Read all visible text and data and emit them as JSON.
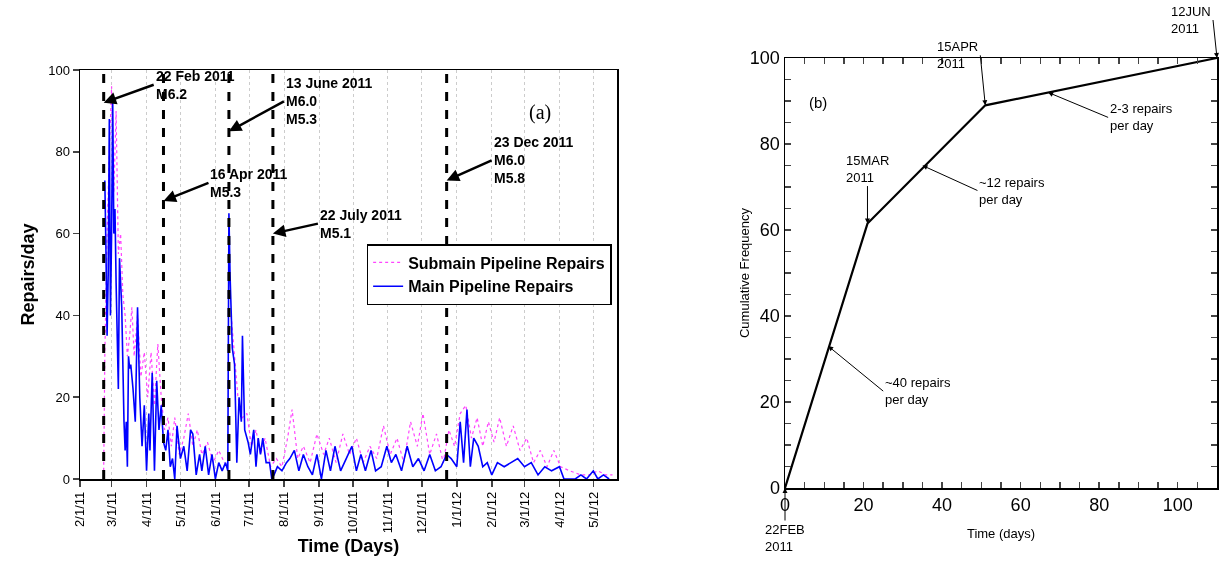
{
  "chart_data": [
    {
      "type": "line",
      "xlabel": "Time (Days)",
      "ylabel": "Repairs/day",
      "xlim": [
        "2011-02-01",
        "2012-05-22"
      ],
      "ylim": [
        0,
        100
      ],
      "yticks": [
        0,
        20,
        40,
        60,
        80,
        100
      ],
      "xticks": [
        {
          "value": "2011-02-01",
          "label": "2/1/11"
        },
        {
          "value": "2011-03-01",
          "label": "3/1/11"
        },
        {
          "value": "2011-04-01",
          "label": "4/1/11"
        },
        {
          "value": "2011-05-01",
          "label": "5/1/11"
        },
        {
          "value": "2011-06-01",
          "label": "6/1/11"
        },
        {
          "value": "2011-07-01",
          "label": "7/1/11"
        },
        {
          "value": "2011-08-01",
          "label": "8/1/11"
        },
        {
          "value": "2011-09-01",
          "label": "9/1/11"
        },
        {
          "value": "2011-10-01",
          "label": "10/1/11"
        },
        {
          "value": "2011-11-01",
          "label": "11/1/11"
        },
        {
          "value": "2011-12-01",
          "label": "12/1/11"
        },
        {
          "value": "2012-01-01",
          "label": "1/1/12"
        },
        {
          "value": "2012-02-01",
          "label": "2/1/12"
        },
        {
          "value": "2012-03-01",
          "label": "3/1/12"
        },
        {
          "value": "2012-04-01",
          "label": "4/1/12"
        },
        {
          "value": "2012-05-01",
          "label": "5/1/12"
        }
      ],
      "grid": "x",
      "legend": "right",
      "marker": "none",
      "series": [
        {
          "name": "Submain Pipeline Repairs",
          "color": "#ff44ff",
          "line_style": "dotted",
          "x": [
            "2011-02-22",
            "2011-02-23",
            "2011-02-25",
            "2011-02-27",
            "2011-03-01",
            "2011-03-03",
            "2011-03-05",
            "2011-03-07",
            "2011-03-09",
            "2011-03-11",
            "2011-03-13",
            "2011-03-15",
            "2011-03-17",
            "2011-03-19",
            "2011-03-21",
            "2011-03-24",
            "2011-03-27",
            "2011-03-30",
            "2011-04-02",
            "2011-04-05",
            "2011-04-08",
            "2011-04-11",
            "2011-04-14",
            "2011-04-17",
            "2011-04-20",
            "2011-04-23",
            "2011-04-26",
            "2011-04-30",
            "2011-05-04",
            "2011-05-08",
            "2011-05-12",
            "2011-05-16",
            "2011-05-20",
            "2011-05-25",
            "2011-05-30",
            "2011-06-04",
            "2011-06-09",
            "2011-06-13",
            "2011-06-15",
            "2011-06-18",
            "2011-06-21",
            "2011-06-25",
            "2011-06-29",
            "2011-07-03",
            "2011-07-07",
            "2011-07-11",
            "2011-07-15",
            "2011-07-20",
            "2011-07-25",
            "2011-07-30",
            "2011-08-04",
            "2011-08-08",
            "2011-08-13",
            "2011-08-18",
            "2011-08-24",
            "2011-08-30",
            "2011-09-05",
            "2011-09-10",
            "2011-09-16",
            "2011-09-22",
            "2011-09-28",
            "2011-10-04",
            "2011-10-10",
            "2011-10-16",
            "2011-10-22",
            "2011-10-28",
            "2011-11-03",
            "2011-11-09",
            "2011-11-15",
            "2011-11-21",
            "2011-11-27",
            "2011-12-02",
            "2011-12-08",
            "2011-12-14",
            "2011-12-20",
            "2011-12-25",
            "2011-12-30",
            "2012-01-04",
            "2012-01-09",
            "2012-01-14",
            "2012-01-19",
            "2012-01-24",
            "2012-01-29",
            "2012-02-03",
            "2012-02-08",
            "2012-02-14",
            "2012-02-20",
            "2012-02-26",
            "2012-03-03",
            "2012-03-09",
            "2012-03-15",
            "2012-03-21",
            "2012-03-27",
            "2012-04-02",
            "2012-04-10",
            "2012-04-20",
            "2012-04-28",
            "2012-05-05",
            "2012-05-12",
            "2012-05-18"
          ],
          "values": [
            2,
            30,
            60,
            80,
            96,
            70,
            90,
            55,
            60,
            45,
            40,
            30,
            35,
            42,
            30,
            40,
            25,
            31,
            20,
            31,
            18,
            33,
            20,
            12,
            15,
            8,
            15,
            6,
            10,
            16,
            8,
            12,
            6,
            9,
            4,
            7,
            4,
            null,
            40,
            30,
            20,
            15,
            16,
            8,
            12,
            6,
            10,
            3,
            5,
            3,
            10,
            17,
            5,
            8,
            4,
            11,
            6,
            10,
            4,
            11,
            6,
            10,
            4,
            8,
            5,
            13,
            6,
            10,
            4,
            14,
            8,
            16,
            6,
            11,
            4,
            12,
            8,
            16,
            18,
            10,
            15,
            8,
            14,
            9,
            15,
            8,
            13,
            7,
            10,
            4,
            7,
            3,
            7,
            3,
            2,
            1,
            1,
            2,
            1,
            1
          ]
        },
        {
          "name": "Main Pipeline Repairs",
          "color": "#0000ff",
          "line_style": "solid",
          "x": [
            "2011-02-23",
            "2011-02-24",
            "2011-02-25",
            "2011-02-26",
            "2011-02-27",
            "2011-02-28",
            "2011-03-01",
            "2011-03-02",
            "2011-03-03",
            "2011-03-04",
            "2011-03-05",
            "2011-03-07",
            "2011-03-08",
            "2011-03-10",
            "2011-03-12",
            "2011-03-13",
            "2011-03-14",
            "2011-03-15",
            "2011-03-16",
            "2011-03-17",
            "2011-03-18",
            "2011-03-20",
            "2011-03-22",
            "2011-03-24",
            "2011-03-26",
            "2011-03-28",
            "2011-03-30",
            "2011-04-01",
            "2011-04-03",
            "2011-04-04",
            "2011-04-06",
            "2011-04-08",
            "2011-04-10",
            "2011-04-12",
            "2011-04-14",
            "2011-04-16",
            "2011-04-18",
            "2011-04-20",
            "2011-04-22",
            "2011-04-24",
            "2011-04-26",
            "2011-04-28",
            "2011-05-01",
            "2011-05-04",
            "2011-05-07",
            "2011-05-10",
            "2011-05-12",
            "2011-05-15",
            "2011-05-18",
            "2011-05-20",
            "2011-05-23",
            "2011-05-26",
            "2011-05-29",
            "2011-06-01",
            "2011-06-04",
            "2011-06-07",
            "2011-06-10",
            "2011-06-12",
            "2011-06-13",
            "2011-06-14",
            "2011-06-16",
            "2011-06-18",
            "2011-06-20",
            "2011-06-22",
            "2011-06-24",
            "2011-06-25",
            "2011-06-27",
            "2011-06-30",
            "2011-07-02",
            "2011-07-05",
            "2011-07-07",
            "2011-07-09",
            "2011-07-11",
            "2011-07-13",
            "2011-07-16",
            "2011-07-19",
            "2011-07-21",
            "2011-07-23",
            "2011-07-26",
            "2011-07-30",
            "2011-08-03",
            "2011-08-06",
            "2011-08-10",
            "2011-08-14",
            "2011-08-18",
            "2011-08-22",
            "2011-08-26",
            "2011-08-30",
            "2011-09-03",
            "2011-09-07",
            "2011-09-11",
            "2011-09-15",
            "2011-09-20",
            "2011-09-25",
            "2011-09-30",
            "2011-10-04",
            "2011-10-08",
            "2011-10-12",
            "2011-10-17",
            "2011-10-21",
            "2011-10-26",
            "2011-10-31",
            "2011-11-04",
            "2011-11-08",
            "2011-11-13",
            "2011-11-18",
            "2011-11-23",
            "2011-11-28",
            "2011-12-03",
            "2011-12-08",
            "2011-12-13",
            "2011-12-18",
            "2011-12-23",
            "2011-12-27",
            "2012-01-01",
            "2012-01-04",
            "2012-01-07",
            "2012-01-10",
            "2012-01-13",
            "2012-01-16",
            "2012-01-20",
            "2012-01-24",
            "2012-01-28",
            "2012-02-01",
            "2012-02-06",
            "2012-02-12",
            "2012-02-18",
            "2012-02-24",
            "2012-03-01",
            "2012-03-07",
            "2012-03-13",
            "2012-03-19",
            "2012-03-25",
            "2012-04-01",
            "2012-04-05",
            "2012-04-15",
            "2012-04-20",
            "2012-04-25",
            "2012-05-01",
            "2012-05-05",
            "2012-05-10",
            "2012-05-15"
          ],
          "values": [
            73,
            56,
            35,
            50,
            88,
            40,
            60,
            92,
            60,
            66,
            48,
            22,
            54,
            42,
            14,
            7,
            14,
            3,
            30,
            27,
            28,
            22,
            14,
            42,
            20,
            8,
            18,
            2,
            16,
            7,
            26,
            2,
            24,
            12,
            18,
            9,
            7,
            12,
            3,
            5,
            0,
            13,
            5,
            8,
            2,
            12,
            11,
            1,
            6,
            2,
            8,
            1,
            6,
            0,
            4,
            2,
            4,
            2,
            65,
            50,
            32,
            28,
            4,
            20,
            14,
            35,
            12,
            9,
            6,
            12,
            3,
            10,
            6,
            10,
            4,
            4,
            0,
            1,
            3,
            2,
            4,
            5,
            7,
            2,
            6,
            3,
            1,
            6,
            0,
            7,
            2,
            8,
            2,
            5,
            8,
            2,
            6,
            2,
            7,
            2,
            3,
            8,
            4,
            6,
            2,
            8,
            3,
            5,
            2,
            6,
            2,
            3,
            6,
            5,
            3,
            14,
            4,
            17,
            3,
            10,
            8,
            3,
            4,
            1,
            4,
            3,
            4,
            5,
            3,
            4,
            1,
            3,
            2,
            3,
            0,
            0,
            1,
            0,
            2,
            0,
            1,
            0
          ]
        }
      ],
      "ref_lines": [
        {
          "axis": "x",
          "value": "2011-02-22",
          "color": "#000000",
          "line_style": "dashed"
        },
        {
          "axis": "x",
          "value": "2011-04-16",
          "color": "#000000",
          "line_style": "dashed"
        },
        {
          "axis": "x",
          "value": "2011-06-13",
          "color": "#000000",
          "line_style": "dashed"
        },
        {
          "axis": "x",
          "value": "2011-07-22",
          "color": "#000000",
          "line_style": "dashed"
        },
        {
          "axis": "x",
          "value": "2011-12-23",
          "color": "#000000",
          "line_style": "dashed"
        }
      ],
      "annotations": [
        {
          "text": "22 Feb 2011\nM6.2",
          "x": "2011-02-22",
          "y": 92
        },
        {
          "text": "16 Apr 2011\nM5.3",
          "x": "2011-04-16",
          "y": 68
        },
        {
          "text": "13 June 2011\nM6.0\nM5.3",
          "x": "2011-06-13",
          "y": 85
        },
        {
          "text": "22 July 2011\nM5.1",
          "x": "2011-07-22",
          "y": 60
        },
        {
          "text": "23 Dec 2011\nM6.0\nM5.8",
          "x": "2011-12-23",
          "y": 73
        },
        "(a)"
      ]
    },
    {
      "type": "line",
      "xlabel": "Time (days)",
      "ylabel": "Cumulative Frequency",
      "xlim": [
        0,
        110
      ],
      "ylim": [
        0,
        100
      ],
      "marker": "none",
      "line_style": "solid",
      "xticks": [
        0,
        {
          "value": 5,
          "label": null
        },
        {
          "value": 10,
          "label": null
        },
        {
          "value": 15,
          "label": null
        },
        20,
        {
          "value": 25,
          "label": null
        },
        {
          "value": 30,
          "label": null
        },
        {
          "value": 35,
          "label": null
        },
        40,
        {
          "value": 45,
          "label": null
        },
        {
          "value": 50,
          "label": null
        },
        {
          "value": 55,
          "label": null
        },
        60,
        {
          "value": 65,
          "label": null
        },
        {
          "value": 70,
          "label": null
        },
        {
          "value": 75,
          "label": null
        },
        80,
        {
          "value": 85,
          "label": null
        },
        {
          "value": 90,
          "label": null
        },
        {
          "value": 95,
          "label": null
        },
        100,
        {
          "value": 105,
          "label": null
        },
        {
          "value": 110,
          "label": null
        }
      ],
      "yticks": [
        0,
        {
          "value": 5,
          "label": null
        },
        {
          "value": 10,
          "label": null
        },
        {
          "value": 15,
          "label": null
        },
        20,
        {
          "value": 25,
          "label": null
        },
        {
          "value": 30,
          "label": null
        },
        {
          "value": 35,
          "label": null
        },
        40,
        {
          "value": 45,
          "label": null
        },
        {
          "value": 50,
          "label": null
        },
        {
          "value": 55,
          "label": null
        },
        60,
        {
          "value": 65,
          "label": null
        },
        {
          "value": 70,
          "label": null
        },
        {
          "value": 75,
          "label": null
        },
        80,
        {
          "value": 85,
          "label": null
        },
        {
          "value": 90,
          "label": null
        },
        {
          "value": 95,
          "label": null
        },
        100
      ],
      "series": [
        {
          "color": "#000000",
          "x": [
            0,
            21,
            51,
            110
          ],
          "values": [
            0,
            61.5,
            89,
            100
          ]
        }
      ],
      "annotations": [
        {
          "text": "22FEB\n2011",
          "x": 0,
          "y": 0
        },
        {
          "text": "15MAR\n2011",
          "x": 21,
          "y": 61.5
        },
        {
          "text": "15APR\n2011",
          "x": 51,
          "y": 89
        },
        {
          "text": "12JUN\n2011",
          "x": 110,
          "y": 100
        },
        {
          "text": "~40 repairs\nper day",
          "x": 11,
          "y": 33
        },
        {
          "text": "~12 repairs\nper day",
          "x": 35,
          "y": 75
        },
        {
          "text": "2-3 repairs\nper day",
          "x": 67,
          "y": 92
        },
        "(b)"
      ]
    }
  ]
}
